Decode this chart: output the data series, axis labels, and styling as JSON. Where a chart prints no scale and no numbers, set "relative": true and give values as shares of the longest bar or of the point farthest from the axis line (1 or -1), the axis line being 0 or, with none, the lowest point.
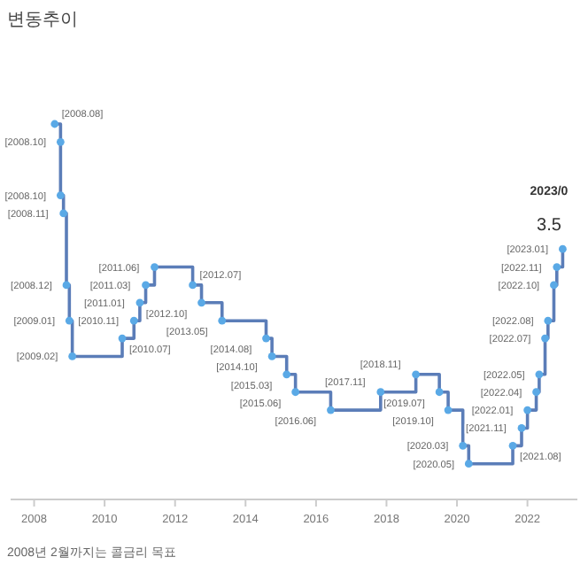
{
  "chart_data": {
    "type": "step",
    "title": "변동추이",
    "relative": true,
    "marker": "circle",
    "xlim": [
      "2007-05",
      "2023-06"
    ],
    "xticks": [
      "2008",
      "2010",
      "2012",
      "2014",
      "2016",
      "2018",
      "2020",
      "2022"
    ],
    "x": [
      "2008-08",
      "2008-10",
      "2008-10",
      "2008-11",
      "2008-12",
      "2009-01",
      "2009-02",
      "2010-07",
      "2010-11",
      "2011-01",
      "2011-03",
      "2011-06",
      "2012-07",
      "2012-10",
      "2013-05",
      "2014-08",
      "2014-10",
      "2015-03",
      "2015-06",
      "2016-06",
      "2017-11",
      "2018-11",
      "2019-07",
      "2019-10",
      "2020-03",
      "2020-05",
      "2021-08",
      "2021-11",
      "2022-01",
      "2022-04",
      "2022-05",
      "2022-07",
      "2022-08",
      "2022-10",
      "2022-11",
      "2023-01"
    ],
    "series": [
      {
        "color": "#5b7db8",
        "values": [
          1,
          0.952,
          0.81,
          0.762,
          0.571,
          0.476,
          0.381,
          0.429,
          0.476,
          0.524,
          0.571,
          0.619,
          0.571,
          0.524,
          0.476,
          0.429,
          0.381,
          0.333,
          0.286,
          0.238,
          0.286,
          0.333,
          0.286,
          0.238,
          0.143,
          0.095,
          0.143,
          0.19,
          0.238,
          0.286,
          0.333,
          0.429,
          0.476,
          0.571,
          0.619,
          0.667
        ]
      }
    ],
    "annotations": [
      "2023/0",
      "3.5",
      {
        "text": "[2008.08]",
        "x": "2008-08",
        "y": 1
      },
      {
        "text": "[2008.10]",
        "x": "2008-10",
        "y": 0.952
      },
      {
        "text": "[2008.10]",
        "x": "2008-10",
        "y": 0.81
      },
      {
        "text": "[2008.11]",
        "x": "2008-11",
        "y": 0.762
      },
      {
        "text": "[2008.12]",
        "x": "2008-12",
        "y": 0.571
      },
      {
        "text": "[2009.01]",
        "x": "2009-01",
        "y": 0.476
      },
      {
        "text": "[2009.02]",
        "x": "2009-02",
        "y": 0.381
      },
      {
        "text": "[2010.07]",
        "x": "2010-07",
        "y": 0.429
      },
      {
        "text": "[2010.11]",
        "x": "2010-11",
        "y": 0.476
      },
      {
        "text": "[2011.01]",
        "x": "2011-01",
        "y": 0.524
      },
      {
        "text": "[2011.03]",
        "x": "2011-03",
        "y": 0.571
      },
      {
        "text": "[2011.06]",
        "x": "2011-06",
        "y": 0.619
      },
      {
        "text": "[2012.07]",
        "x": "2012-07",
        "y": 0.571
      },
      {
        "text": "[2012.10]",
        "x": "2012-10",
        "y": 0.524
      },
      {
        "text": "[2013.05]",
        "x": "2013-05",
        "y": 0.476
      },
      {
        "text": "[2014.08]",
        "x": "2014-08",
        "y": 0.429
      },
      {
        "text": "[2014.10]",
        "x": "2014-10",
        "y": 0.381
      },
      {
        "text": "[2015.03]",
        "x": "2015-03",
        "y": 0.333
      },
      {
        "text": "[2015.06]",
        "x": "2015-06",
        "y": 0.286
      },
      {
        "text": "[2016.06]",
        "x": "2016-06",
        "y": 0.238
      },
      {
        "text": "[2017.11]",
        "x": "2017-11",
        "y": 0.286
      },
      {
        "text": "[2018.11]",
        "x": "2018-11",
        "y": 0.333
      },
      {
        "text": "[2019.07]",
        "x": "2019-07",
        "y": 0.286
      },
      {
        "text": "[2019.10]",
        "x": "2019-10",
        "y": 0.238
      },
      {
        "text": "[2020.03]",
        "x": "2020-03",
        "y": 0.143
      },
      {
        "text": "[2020.05]",
        "x": "2020-05",
        "y": 0.095
      },
      {
        "text": "[2021.08]",
        "x": "2021-08",
        "y": 0.143
      },
      {
        "text": "[2021.11]",
        "x": "2021-11",
        "y": 0.19
      },
      {
        "text": "[2022.01]",
        "x": "2022-01",
        "y": 0.238
      },
      {
        "text": "[2022.04]",
        "x": "2022-04",
        "y": 0.286
      },
      {
        "text": "[2022.05]",
        "x": "2022-05",
        "y": 0.333
      },
      {
        "text": "[2022.07]",
        "x": "2022-07",
        "y": 0.429
      },
      {
        "text": "[2022.08]",
        "x": "2022-08",
        "y": 0.476
      },
      {
        "text": "[2022.10]",
        "x": "2022-10",
        "y": 0.571
      },
      {
        "text": "[2022.11]",
        "x": "2022-11",
        "y": 0.619
      },
      {
        "text": "[2023.01]",
        "x": "2023-01",
        "y": 0.667
      },
      "2008년 2월까지는 콜금리 목표"
    ]
  }
}
